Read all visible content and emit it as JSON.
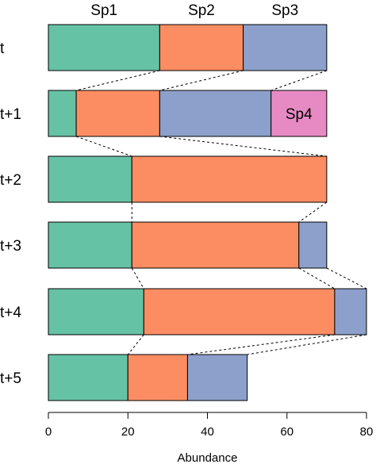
{
  "chart_data": {
    "type": "bar",
    "orientation": "horizontal-stacked",
    "xlabel": "Abundance",
    "xlim": [
      0,
      80
    ],
    "xticks": [
      0,
      20,
      40,
      60,
      80
    ],
    "species_header": [
      "Sp1",
      "Sp2",
      "Sp3"
    ],
    "colors": {
      "Sp1": "#66c2a5",
      "Sp2": "#fc8d62",
      "Sp3": "#8da0cb",
      "Sp4": "#e78ac3"
    },
    "series_order": [
      "Sp1",
      "Sp2",
      "Sp3",
      "Sp4"
    ],
    "rows": [
      {
        "label": "t",
        "values": {
          "Sp1": 28,
          "Sp2": 21,
          "Sp3": 21,
          "Sp4": 0
        },
        "inline_labels": []
      },
      {
        "label": "t+1",
        "values": {
          "Sp1": 7,
          "Sp2": 21,
          "Sp3": 28,
          "Sp4": 14
        },
        "inline_labels": [
          "Sp4"
        ]
      },
      {
        "label": "t+2",
        "values": {
          "Sp1": 21,
          "Sp2": 49,
          "Sp3": 0,
          "Sp4": 0
        },
        "inline_labels": []
      },
      {
        "label": "t+3",
        "values": {
          "Sp1": 21,
          "Sp2": 42,
          "Sp3": 7,
          "Sp4": 0
        },
        "inline_labels": []
      },
      {
        "label": "t+4",
        "values": {
          "Sp1": 24,
          "Sp2": 48,
          "Sp3": 8,
          "Sp4": 0
        },
        "inline_labels": []
      },
      {
        "label": "t+5",
        "values": {
          "Sp1": 20,
          "Sp2": 15,
          "Sp3": 15,
          "Sp4": 0
        },
        "inline_labels": []
      }
    ]
  }
}
